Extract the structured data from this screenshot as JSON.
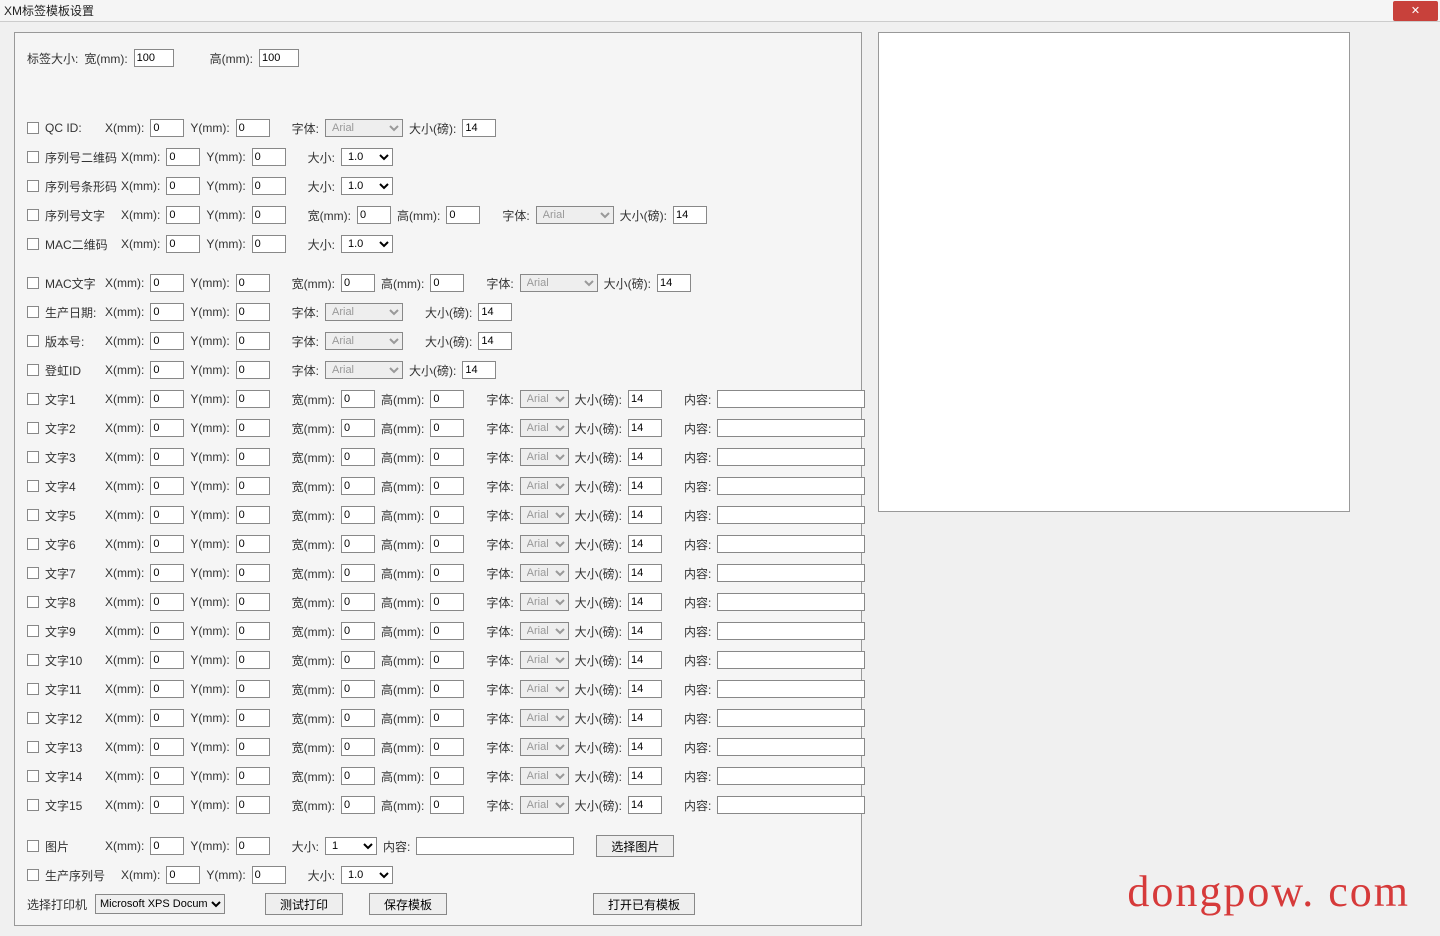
{
  "window": {
    "title": "XM标签模板设置",
    "close_label": "✕"
  },
  "size": {
    "label": "标签大小:",
    "width_label": "宽(mm):",
    "width_value": "100",
    "height_label": "高(mm):",
    "height_value": "100"
  },
  "labels": {
    "x": "X(mm):",
    "y": "Y(mm):",
    "font": "字体:",
    "size_pt": "大小(磅):",
    "size": "大小:",
    "width": "宽(mm):",
    "height": "高(mm):",
    "content": "内容:"
  },
  "defaults": {
    "zero": "0",
    "one": "1",
    "one_zero": "1.0",
    "font_arial": "Arial",
    "fourteen": "14"
  },
  "rows": {
    "qc_id": {
      "chk_label": "QC ID:"
    },
    "sn_qr": {
      "chk_label": "序列号二维码"
    },
    "sn_bar": {
      "chk_label": "序列号条形码"
    },
    "sn_text": {
      "chk_label": "序列号文字"
    },
    "mac_qr": {
      "chk_label": "MAC二维码"
    },
    "mac_text": {
      "chk_label": "MAC文字"
    },
    "prod_date": {
      "chk_label": "生产日期:"
    },
    "version": {
      "chk_label": "版本号:"
    },
    "box_id": {
      "chk_label": "登虹ID"
    },
    "text": [
      {
        "chk_label": "文字1"
      },
      {
        "chk_label": "文字2"
      },
      {
        "chk_label": "文字3"
      },
      {
        "chk_label": "文字4"
      },
      {
        "chk_label": "文字5"
      },
      {
        "chk_label": "文字6"
      },
      {
        "chk_label": "文字7"
      },
      {
        "chk_label": "文字8"
      },
      {
        "chk_label": "文字9"
      },
      {
        "chk_label": "文字10"
      },
      {
        "chk_label": "文字11"
      },
      {
        "chk_label": "文字12"
      },
      {
        "chk_label": "文字13"
      },
      {
        "chk_label": "文字14"
      },
      {
        "chk_label": "文字15"
      }
    ],
    "image": {
      "chk_label": "图片",
      "choose_btn": "选择图片"
    },
    "prod_sn": {
      "chk_label": "生产序列号"
    }
  },
  "footer": {
    "printer_label": "选择打印机",
    "printer_value": "Microsoft XPS Document",
    "btn_test": "测试打印",
    "btn_save": "保存模板",
    "btn_open": "打开已有模板"
  },
  "watermark": "dongpow. com"
}
